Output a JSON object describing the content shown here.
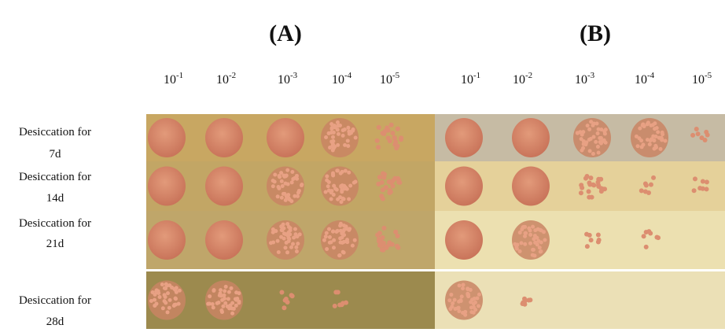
{
  "panels": [
    {
      "label": "(A)"
    },
    {
      "label": "(B)"
    }
  ],
  "dilutions": [
    {
      "base": "10",
      "exp": "-1"
    },
    {
      "base": "10",
      "exp": "-2"
    },
    {
      "base": "10",
      "exp": "-3"
    },
    {
      "base": "10",
      "exp": "-4"
    },
    {
      "base": "10",
      "exp": "-5"
    }
  ],
  "rows": [
    {
      "line1": "Desiccation for",
      "line2": "7d"
    },
    {
      "line1": "Desiccation for",
      "line2": "14d"
    },
    {
      "line1": "Desiccation for",
      "line2": "21d"
    },
    {
      "line1": "Desiccation for",
      "line2": "28d"
    }
  ]
}
